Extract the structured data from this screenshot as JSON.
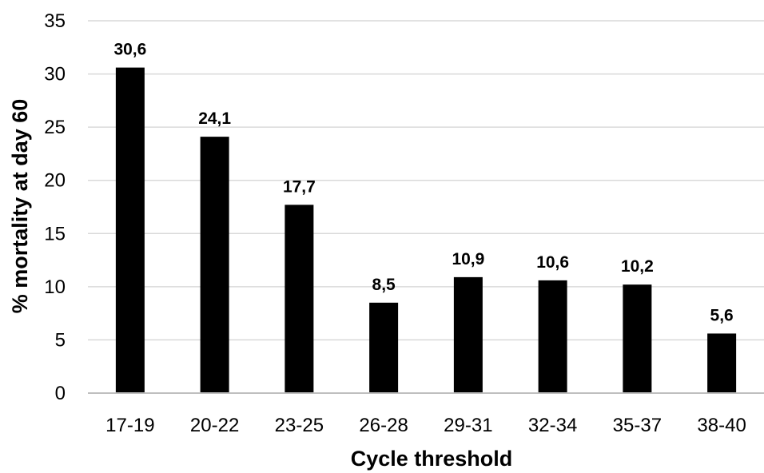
{
  "chart_data": {
    "type": "bar",
    "title": "",
    "xlabel": "Cycle threshold",
    "ylabel": "% mortality at day 60",
    "categories": [
      "17-19",
      "20-22",
      "23-25",
      "26-28",
      "29-31",
      "32-34",
      "35-37",
      "38-40"
    ],
    "values": [
      30.6,
      24.1,
      17.7,
      8.5,
      10.9,
      10.6,
      10.2,
      5.6
    ],
    "data_labels": [
      "30,6",
      "24,1",
      "17,7",
      "8,5",
      "10,9",
      "10,6",
      "10,2",
      "5,6"
    ],
    "yticks": [
      0,
      5,
      10,
      15,
      20,
      25,
      30,
      35
    ],
    "ylim": [
      0,
      35
    ],
    "grid": true,
    "legend": "none",
    "colors": {
      "bar": "#000000",
      "grid": "#d9d9d9",
      "axis": "#bfbfbf",
      "text": "#000000"
    }
  }
}
